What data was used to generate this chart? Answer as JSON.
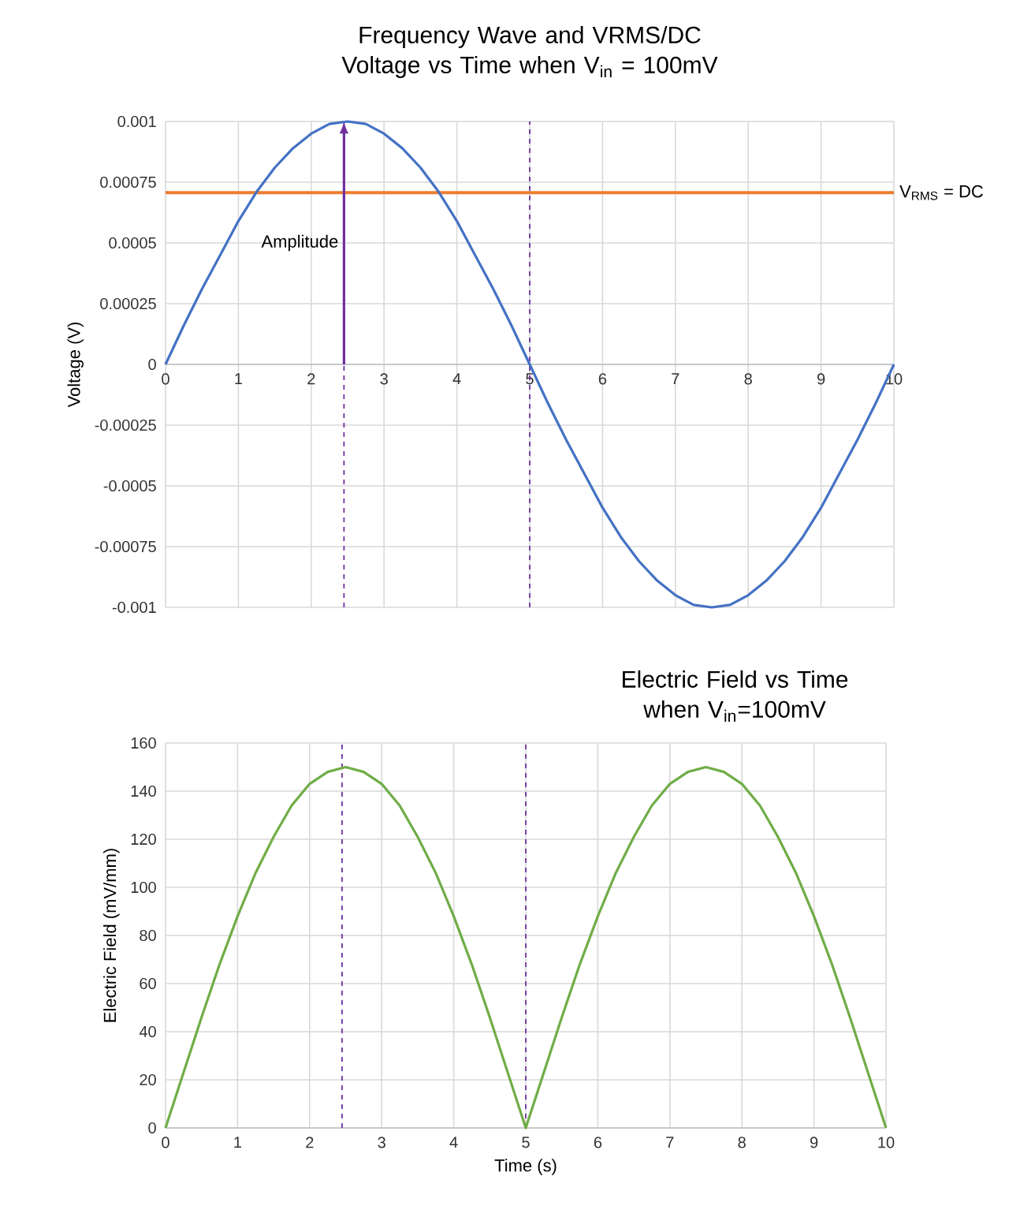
{
  "chart_data": [
    {
      "type": "line",
      "title": "Frequency Wave and VRMS/DC Voltage vs Time when V$_{in}$ = 100mV",
      "ylabel": "Voltage (V)",
      "x": [
        0,
        0.25,
        0.5,
        0.75,
        1,
        1.25,
        1.5,
        1.75,
        2,
        2.25,
        2.5,
        2.75,
        3,
        3.25,
        3.5,
        3.75,
        4,
        4.25,
        4.5,
        4.75,
        5,
        5.25,
        5.5,
        5.75,
        6,
        6.25,
        6.5,
        6.75,
        7,
        7.25,
        7.5,
        7.75,
        8,
        8.25,
        8.5,
        8.75,
        9,
        9.25,
        9.5,
        9.75,
        10
      ],
      "series": [
        {
          "color": "#4472c4",
          "values": [
            0,
            0.00016,
            0.00031,
            0.00045,
            0.00059,
            0.00071,
            0.00081,
            0.00089,
            0.00095,
            0.00099,
            0.001,
            0.00099,
            0.00095,
            0.00089,
            0.00081,
            0.00071,
            0.00059,
            0.00045,
            0.00031,
            0.00016,
            0,
            -0.00016,
            -0.00031,
            -0.00045,
            -0.00059,
            -0.00071,
            -0.00081,
            -0.00089,
            -0.00095,
            -0.00099,
            -0.001,
            -0.00099,
            -0.00095,
            -0.00089,
            -0.00081,
            -0.00071,
            -0.00059,
            -0.00045,
            -0.00031,
            -0.00016,
            0
          ]
        }
      ],
      "xlim": [
        0,
        10
      ],
      "xticks": [
        0,
        1,
        2,
        3,
        4,
        5,
        6,
        7,
        8,
        9,
        10
      ],
      "ylim": [
        -0.001,
        0.001
      ],
      "yticks": [
        -0.001,
        -0.00075,
        -0.0005,
        -0.00025,
        0,
        0.00025,
        0.0005,
        0.00075,
        0.001
      ],
      "grid": true,
      "ref_lines": [
        {
          "axis": "y",
          "value": 0.000707,
          "label": "V$_{RMS}$ = DC",
          "color": "#ed7d31"
        },
        {
          "axis": "x",
          "value": 2.45,
          "color": "#7030a0",
          "line_style": "dashed"
        },
        {
          "axis": "x",
          "value": 5,
          "color": "#7030a0",
          "line_style": "dashed"
        }
      ],
      "annotations": [
        {
          "text": "Amplitude",
          "x": 2.45,
          "y": 0.0005
        }
      ]
    },
    {
      "type": "line",
      "title": "Electric Field vs Time when V$_{in}$=100mV",
      "xlabel": "Time (s)",
      "ylabel": "Electric Field (mV/mm)",
      "x": [
        0,
        0.25,
        0.5,
        0.75,
        1,
        1.25,
        1.5,
        1.75,
        2,
        2.25,
        2.5,
        2.75,
        3,
        3.25,
        3.5,
        3.75,
        4,
        4.25,
        4.5,
        4.75,
        5,
        5.25,
        5.5,
        5.75,
        6,
        6.25,
        6.5,
        6.75,
        7,
        7.25,
        7.5,
        7.75,
        8,
        8.25,
        8.5,
        8.75,
        9,
        9.25,
        9.5,
        9.75,
        10
      ],
      "series": [
        {
          "color": "#70ad47",
          "values": [
            0,
            23,
            46,
            68,
            88,
            106,
            121,
            134,
            143,
            148,
            150,
            148,
            143,
            134,
            121,
            106,
            88,
            68,
            46,
            23,
            0,
            23,
            46,
            68,
            88,
            106,
            121,
            134,
            143,
            148,
            150,
            148,
            143,
            134,
            121,
            106,
            88,
            68,
            46,
            23,
            0
          ]
        }
      ],
      "xlim": [
        0,
        10
      ],
      "xticks": [
        0,
        1,
        2,
        3,
        4,
        5,
        6,
        7,
        8,
        9,
        10
      ],
      "ylim": [
        0,
        160
      ],
      "yticks": [
        0,
        20,
        40,
        60,
        80,
        100,
        120,
        140,
        160
      ],
      "grid": true,
      "ref_lines": [
        {
          "axis": "x",
          "value": 2.45,
          "color": "#7030a0",
          "line_style": "dashed"
        },
        {
          "axis": "x",
          "value": 5,
          "color": "#7030a0",
          "line_style": "dashed"
        }
      ]
    }
  ]
}
